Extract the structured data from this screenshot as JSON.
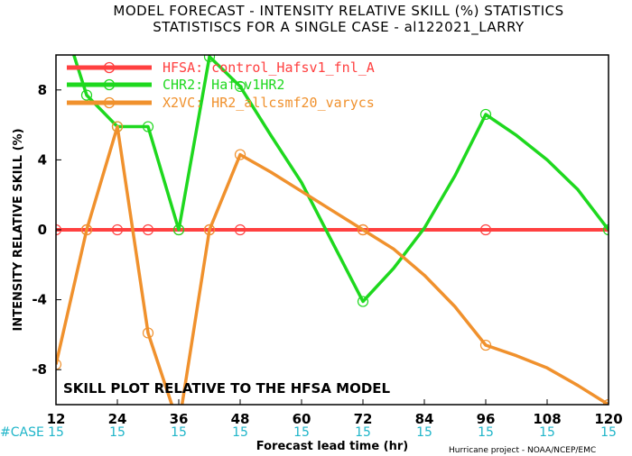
{
  "title_line1": "MODEL FORECAST - INTENSITY RELATIVE SKILL (%) STATISTICS",
  "title_line2": "STATISTISCS FOR A SINGLE CASE - al122021_LARRY",
  "annotation": "SKILL PLOT RELATIVE TO THE HFSA MODEL",
  "case_label": "#CASE",
  "credit": "Hurricane project - NOAA/NCEP/EMC",
  "chart_data": {
    "type": "line",
    "xlabel": "Forecast lead time (hr)",
    "ylabel": "INTENSITY RELATIVE SKILL (%)",
    "xlim": [
      12,
      120
    ],
    "ylim": [
      -10,
      10
    ],
    "xticks": [
      12,
      24,
      36,
      48,
      60,
      72,
      84,
      96,
      108,
      120
    ],
    "yticks": [
      -8,
      -4,
      0,
      4,
      8
    ],
    "ytick_labels": [
      "-8",
      "-4",
      "0",
      "4",
      "8"
    ],
    "case_counts": [
      "15",
      "15",
      "15",
      "15",
      "15",
      "15",
      "15",
      "15",
      "15",
      "15"
    ],
    "grid": false,
    "legend_position": "top-left",
    "series": [
      {
        "name": "HFSA: control_Hafsv1_fnl_A",
        "color": "#ff4040",
        "x": [
          12,
          18,
          24,
          30,
          36,
          42,
          48,
          54,
          60,
          66,
          72,
          78,
          84,
          90,
          96,
          102,
          108,
          114,
          120
        ],
        "y": [
          0,
          0,
          0,
          0,
          0,
          0,
          0,
          0,
          0,
          0,
          0,
          0,
          0,
          0,
          0,
          0,
          0,
          0,
          0
        ],
        "markers_at": [
          12,
          18,
          24,
          30,
          36,
          42,
          48,
          72,
          96
        ]
      },
      {
        "name": "CHR2: Hafsv1HR2",
        "color": "#1ed81e",
        "x": [
          12,
          18,
          24,
          30,
          36,
          42,
          48,
          54,
          60,
          66,
          72,
          78,
          84,
          90,
          96,
          102,
          108,
          114,
          120
        ],
        "y": [
          13.2,
          7.7,
          5.9,
          5.9,
          0.0,
          9.9,
          8.2,
          5.4,
          2.7,
          -0.7,
          -4.1,
          -2.2,
          0.1,
          3.1,
          6.6,
          5.4,
          4.0,
          2.3,
          0.0
        ],
        "markers_at": [
          18,
          24,
          30,
          36,
          42,
          48,
          72,
          96,
          120
        ]
      },
      {
        "name": "X2VC: HR2_allcsmf20_varycs",
        "color": "#f0912d",
        "x": [
          12,
          18,
          24,
          30,
          36,
          42,
          48,
          54,
          60,
          66,
          72,
          78,
          84,
          90,
          96,
          102,
          108,
          114,
          120
        ],
        "y": [
          -7.7,
          0.0,
          5.9,
          -5.9,
          -11.2,
          0.0,
          4.3,
          3.3,
          2.2,
          1.1,
          0.0,
          -1.1,
          -2.6,
          -4.4,
          -6.6,
          -7.2,
          -7.9,
          -8.9,
          -10.0
        ],
        "markers_at": [
          12,
          18,
          24,
          30,
          42,
          48,
          72,
          96,
          120
        ]
      }
    ]
  }
}
